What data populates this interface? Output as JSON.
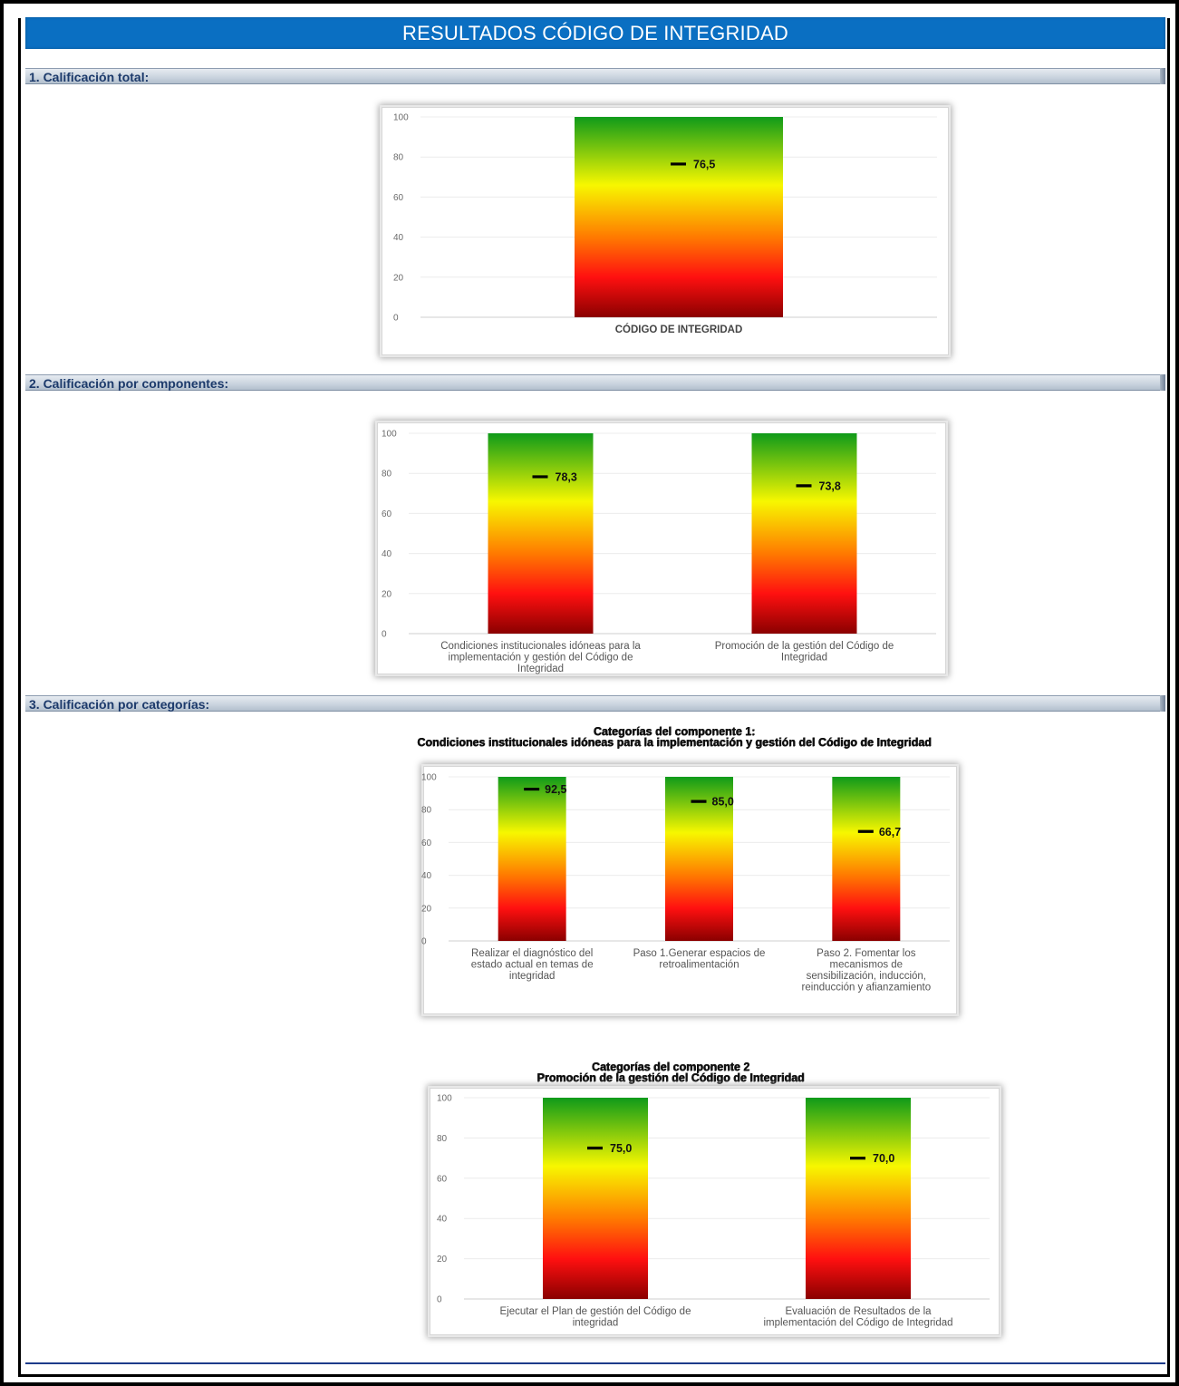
{
  "page": {
    "title": "RESULTADOS CÓDIGO DE INTEGRIDAD",
    "sections": [
      "1. Calificación total:",
      "2. Calificación por componentes:",
      "3. Calificación por categorías:"
    ]
  },
  "colors": {
    "title_bar": "#0a6fc2",
    "bar_gradient": [
      "#0f9a1a",
      "#f7f700",
      "#ff7a00",
      "#ff1010",
      "#8a0000"
    ],
    "marker": "#000000"
  },
  "chart_data": [
    {
      "id": "total",
      "type": "bar",
      "title": "",
      "categories": [
        "CÓDIGO DE INTEGRIDAD"
      ],
      "values": [
        76.5
      ],
      "value_labels": [
        "76,5"
      ],
      "ylim": [
        0,
        100
      ],
      "yticks": [
        "0",
        "20",
        "40",
        "60",
        "80",
        "100"
      ],
      "grid": true
    },
    {
      "id": "componentes",
      "type": "bar",
      "title": "",
      "categories": [
        "Condiciones institucionales idóneas para la implementación y gestión del Código de Integridad",
        "Promoción de la gestión del Código de Integridad"
      ],
      "values": [
        78.3,
        73.8
      ],
      "value_labels": [
        "78,3",
        "73,8"
      ],
      "ylim": [
        0,
        100
      ],
      "yticks": [
        "0",
        "20",
        "40",
        "60",
        "80",
        "100"
      ],
      "grid": true
    },
    {
      "id": "categorias_1",
      "type": "bar",
      "title": "Categorías del componente 1:",
      "subtitle": "Condiciones institucionales idóneas para la implementación y gestión del Código de Integridad",
      "categories": [
        "Realizar el diagnóstico del estado actual en temas de integridad",
        "Paso 1.Generar espacios de retroalimentación",
        "Paso 2. Fomentar los mecanismos de sensibilización, inducción, reinducción y afianzamiento"
      ],
      "values": [
        92.5,
        85.0,
        66.7
      ],
      "value_labels": [
        "92,5",
        "85,0",
        "66,7"
      ],
      "ylim": [
        0,
        100
      ],
      "yticks": [
        "0",
        "20",
        "40",
        "60",
        "80",
        "100"
      ],
      "grid": true
    },
    {
      "id": "categorias_2",
      "type": "bar",
      "title": "Categorías del componente 2",
      "subtitle": "Promoción de la gestión del Código de Integridad",
      "categories": [
        "Ejecutar el Plan de gestión del Código de integridad",
        "Evaluación de Resultados de la implementación del Código de Integridad"
      ],
      "values": [
        75.0,
        70.0
      ],
      "value_labels": [
        "75,0",
        "70,0"
      ],
      "ylim": [
        0,
        100
      ],
      "yticks": [
        "0",
        "20",
        "40",
        "60",
        "80",
        "100"
      ],
      "grid": true
    }
  ]
}
